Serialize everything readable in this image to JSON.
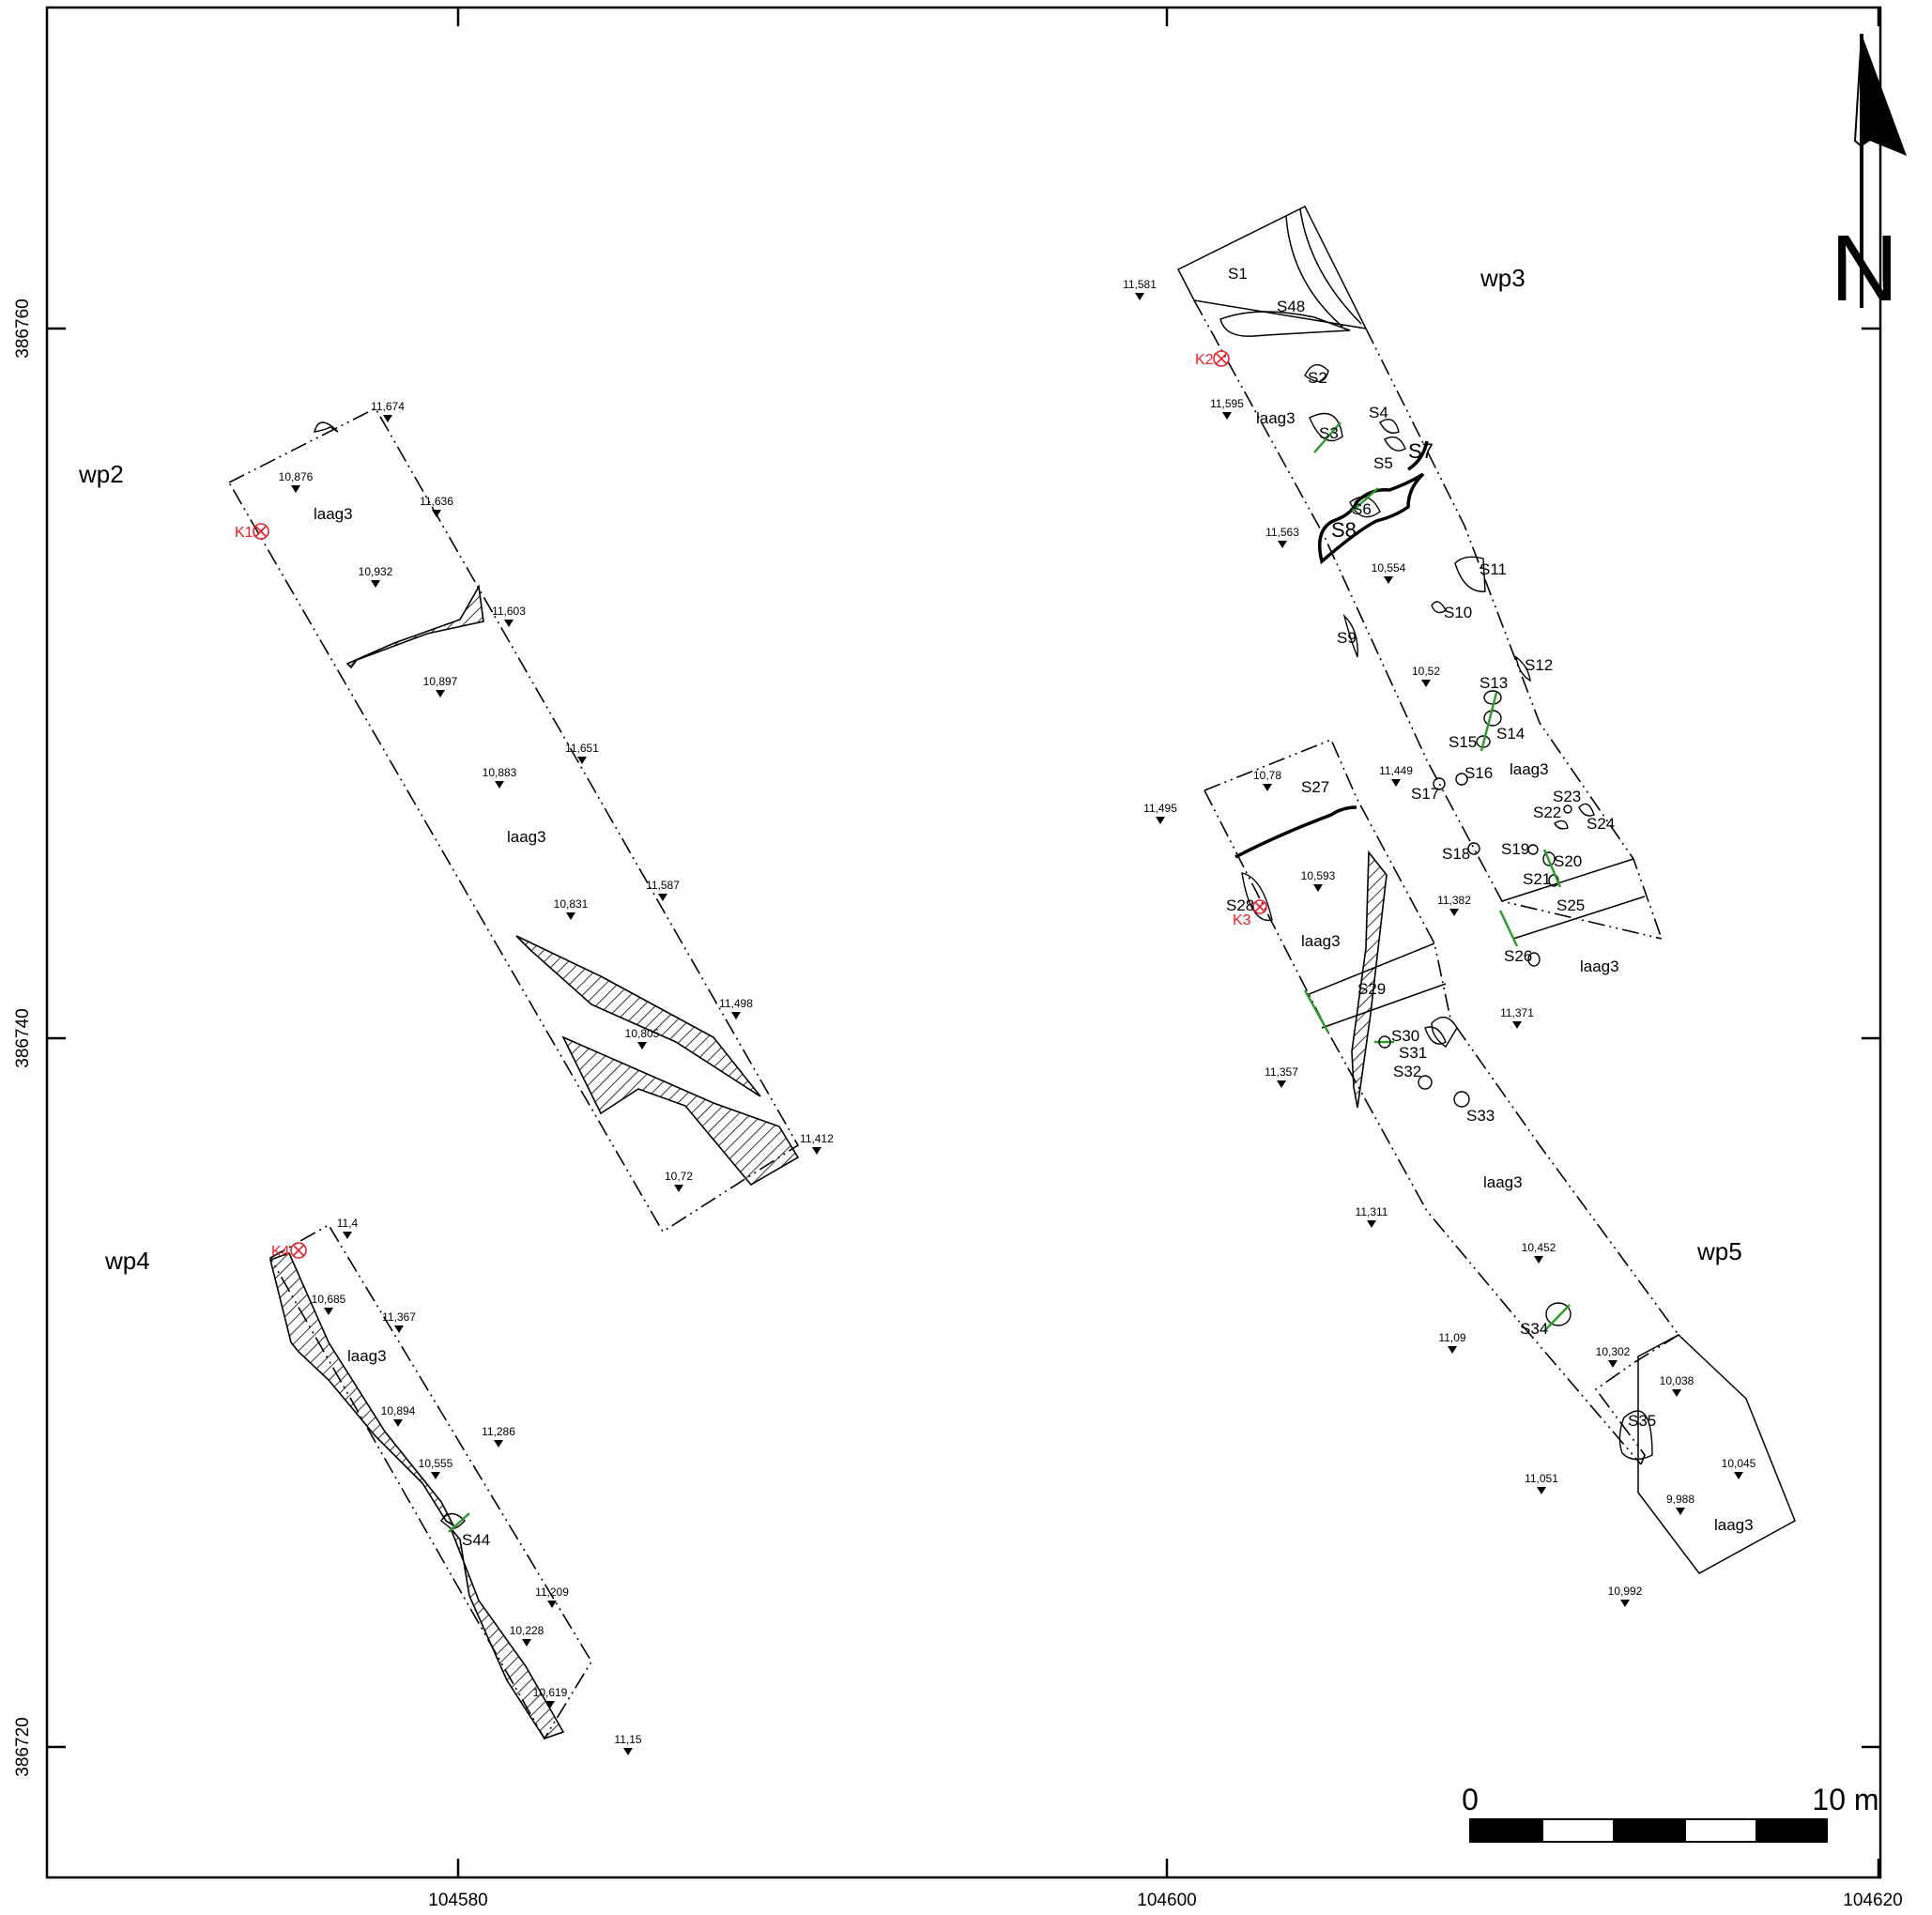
{
  "map": {
    "x_ticks": [
      "104580",
      "104600",
      "104620"
    ],
    "y_ticks": [
      "386760",
      "386740",
      "386720"
    ],
    "scale_bar": {
      "start": "0",
      "end": "10 m"
    },
    "north_label": "N",
    "trench_labels": [
      "wp2",
      "wp3",
      "wp4",
      "wp5"
    ],
    "layer_label": "laag3",
    "boreholes": [
      "K1",
      "K2",
      "K3",
      "K4"
    ],
    "features": [
      "S1",
      "S48",
      "S2",
      "S3",
      "S4",
      "S5",
      "S6",
      "S7",
      "S8",
      "S9",
      "S10",
      "S11",
      "S12",
      "S13",
      "S14",
      "S15",
      "S16",
      "S17",
      "S18",
      "S19",
      "S20",
      "S21",
      "S22",
      "S23",
      "S24",
      "S25",
      "S26",
      "S27",
      "S28",
      "S29",
      "S30",
      "S31",
      "S32",
      "S33",
      "S34",
      "S35",
      "S44"
    ],
    "elevations": [
      "11,674",
      "10,876",
      "11,636",
      "10,932",
      "11,603",
      "10,897",
      "11,651",
      "10,883",
      "11,587",
      "10,831",
      "11,498",
      "10,805",
      "11,412",
      "10,72",
      "11,4",
      "10,685",
      "11,367",
      "10,894",
      "11,286",
      "10,555",
      "11,209",
      "10,228",
      "10,619",
      "11,15",
      "11,581",
      "11,595",
      "11,563",
      "10,554",
      "10,52",
      "11,495",
      "10,78",
      "11,449",
      "10,593",
      "11,382",
      "11,371",
      "11,357",
      "11,311",
      "10,452",
      "11,09",
      "10,302",
      "10,038",
      "11,051",
      "10,045",
      "9,988",
      "10,992"
    ]
  }
}
